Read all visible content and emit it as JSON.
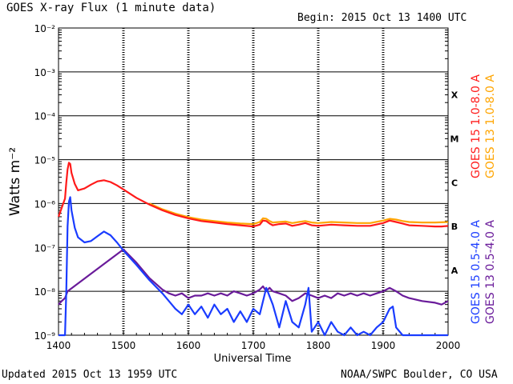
{
  "header": {
    "title": "GOES X-ray Flux (1 minute data)",
    "begin": "Begin: 2015 Oct 13 1400 UTC"
  },
  "footer": {
    "updated": "Updated 2015 Oct 13 1959 UTC",
    "credit": "NOAA/SWPC Boulder, CO USA"
  },
  "colors": {
    "goes15_long": "#ff1a1a",
    "goes13_long": "#ffa500",
    "goes15_short": "#1a3cff",
    "goes13_short": "#6a1b9a"
  },
  "chart_data": {
    "type": "line",
    "title": "GOES X-ray Flux (1 minute data)",
    "xlabel": "Universal Time",
    "ylabel": "Watts m⁻²",
    "xlim": [
      1400,
      2000
    ],
    "ylim": [
      1e-09,
      0.01
    ],
    "yscale": "log",
    "x_ticks": [
      "1400",
      "1500",
      "1600",
      "1700",
      "1800",
      "1900",
      "2000"
    ],
    "y_ticks": [
      "10⁻⁹",
      "10⁻⁸",
      "10⁻⁷",
      "10⁻⁶",
      "10⁻⁵",
      "10⁻⁴",
      "10⁻³",
      "10⁻²"
    ],
    "y_tick_exponents": [
      -9,
      -8,
      -7,
      -6,
      -5,
      -4,
      -3,
      -2
    ],
    "flare_classes": [
      {
        "label": "X",
        "value": 0.0003
      },
      {
        "label": "M",
        "value": 3e-05
      },
      {
        "label": "C",
        "value": 3e-06
      },
      {
        "label": "B",
        "value": 3e-07
      },
      {
        "label": "A",
        "value": 3e-08
      }
    ],
    "grid": true,
    "series": [
      {
        "name": "GOES 15 1.0-8.0 A",
        "color": "#ff1a1a",
        "x": [
          1400,
          1405,
          1410,
          1412,
          1414,
          1416,
          1418,
          1420,
          1425,
          1430,
          1440,
          1450,
          1460,
          1470,
          1480,
          1490,
          1500,
          1520,
          1540,
          1560,
          1580,
          1600,
          1620,
          1640,
          1660,
          1680,
          1700,
          1710,
          1715,
          1720,
          1725,
          1730,
          1740,
          1750,
          1760,
          1770,
          1780,
          1790,
          1800,
          1820,
          1840,
          1860,
          1880,
          1900,
          1910,
          1920,
          1930,
          1940,
          1960,
          1980,
          1990,
          2000
        ],
        "y": [
          5e-07,
          8e-07,
          1.3e-06,
          3e-06,
          6e-06,
          8.5e-06,
          8e-06,
          5e-06,
          2.8e-06,
          2e-06,
          2.2e-06,
          2.7e-06,
          3.2e-06,
          3.4e-06,
          3.1e-06,
          2.6e-06,
          2.1e-06,
          1.35e-06,
          9.5e-07,
          7e-07,
          5.5e-07,
          4.6e-07,
          4e-07,
          3.7e-07,
          3.4e-07,
          3.2e-07,
          3e-07,
          3.3e-07,
          4.1e-07,
          4e-07,
          3.5e-07,
          3.2e-07,
          3.4e-07,
          3.5e-07,
          3.1e-07,
          3.3e-07,
          3.6e-07,
          3.2e-07,
          3.1e-07,
          3.3e-07,
          3.2e-07,
          3.1e-07,
          3.1e-07,
          3.6e-07,
          4.1e-07,
          3.8e-07,
          3.5e-07,
          3.2e-07,
          3.1e-07,
          3e-07,
          3e-07,
          3.1e-07
        ]
      },
      {
        "name": "GOES 13 1.0-8.0 A",
        "color": "#ffa500",
        "x": [
          1540,
          1560,
          1580,
          1600,
          1620,
          1640,
          1660,
          1680,
          1700,
          1710,
          1715,
          1720,
          1725,
          1730,
          1740,
          1750,
          1760,
          1770,
          1780,
          1790,
          1800,
          1820,
          1840,
          1860,
          1880,
          1900,
          1910,
          1920,
          1930,
          1940,
          1960,
          1980,
          2000
        ],
        "y": [
          1e-06,
          7.4e-07,
          5.9e-07,
          4.9e-07,
          4.3e-07,
          4e-07,
          3.7e-07,
          3.5e-07,
          3.4e-07,
          3.8e-07,
          4.6e-07,
          4.5e-07,
          4e-07,
          3.7e-07,
          3.8e-07,
          3.9e-07,
          3.6e-07,
          3.8e-07,
          4e-07,
          3.7e-07,
          3.6e-07,
          3.8e-07,
          3.7e-07,
          3.6e-07,
          3.6e-07,
          4.1e-07,
          4.5e-07,
          4.3e-07,
          4e-07,
          3.8e-07,
          3.7e-07,
          3.7e-07,
          3.8e-07
        ]
      },
      {
        "name": "GOES 15 0.5-4.0 A",
        "color": "#1a3cff",
        "x": [
          1400,
          1405,
          1408,
          1410,
          1412,
          1414,
          1416,
          1418,
          1420,
          1425,
          1430,
          1440,
          1450,
          1460,
          1470,
          1480,
          1490,
          1500,
          1520,
          1540,
          1560,
          1570,
          1580,
          1590,
          1600,
          1610,
          1620,
          1630,
          1640,
          1650,
          1660,
          1670,
          1680,
          1690,
          1700,
          1710,
          1720,
          1730,
          1740,
          1750,
          1760,
          1770,
          1780,
          1785,
          1790,
          1800,
          1810,
          1820,
          1830,
          1840,
          1850,
          1860,
          1870,
          1880,
          1890,
          1900,
          1910,
          1915,
          1920,
          1930,
          1940,
          1950,
          1960,
          1980,
          2000
        ],
        "y": [
          1e-09,
          1e-09,
          1e-09,
          1e-09,
          1e-08,
          3e-07,
          1.1e-06,
          1.4e-06,
          7e-07,
          2.8e-07,
          1.7e-07,
          1.3e-07,
          1.4e-07,
          1.8e-07,
          2.3e-07,
          1.9e-07,
          1.3e-07,
          8.5e-08,
          4e-08,
          1.8e-08,
          9e-09,
          6e-09,
          4e-09,
          3e-09,
          5e-09,
          3e-09,
          4.5e-09,
          2.5e-09,
          5e-09,
          3e-09,
          4e-09,
          2e-09,
          3.5e-09,
          2e-09,
          4e-09,
          3e-09,
          1.2e-08,
          5e-09,
          1.5e-09,
          6e-09,
          2e-09,
          1.5e-09,
          5e-09,
          1.2e-08,
          1.2e-09,
          2e-09,
          1e-09,
          2e-09,
          1.2e-09,
          1e-09,
          1.5e-09,
          1e-09,
          1.2e-09,
          1e-09,
          1.5e-09,
          2e-09,
          4e-09,
          4.5e-09,
          1.5e-09,
          1e-09,
          1e-09,
          1e-09,
          1e-09,
          1e-09,
          1e-09
        ]
      },
      {
        "name": "GOES 13 0.5-4.0 A",
        "color": "#6a1b9a",
        "x": [
          1400,
          1405,
          1410,
          1414,
          1500,
          1520,
          1540,
          1560,
          1570,
          1580,
          1590,
          1600,
          1610,
          1620,
          1630,
          1640,
          1650,
          1660,
          1670,
          1680,
          1690,
          1700,
          1710,
          1715,
          1720,
          1725,
          1730,
          1740,
          1750,
          1760,
          1770,
          1780,
          1790,
          1800,
          1810,
          1820,
          1830,
          1840,
          1850,
          1860,
          1870,
          1880,
          1890,
          1900,
          1910,
          1920,
          1930,
          1940,
          1960,
          1980,
          1990,
          2000
        ],
        "y": [
          5e-09,
          6e-09,
          7e-09,
          1e-08,
          9e-08,
          4.5e-08,
          2e-08,
          1.1e-08,
          9e-09,
          8e-09,
          9e-09,
          7e-09,
          8e-09,
          8e-09,
          9e-09,
          8e-09,
          9e-09,
          8e-09,
          1e-08,
          9e-09,
          8e-09,
          9e-09,
          1.1e-08,
          1.3e-08,
          1e-08,
          1.2e-08,
          1e-08,
          9e-09,
          8e-09,
          6e-09,
          7e-09,
          9e-09,
          8e-09,
          7e-09,
          8e-09,
          7e-09,
          9e-09,
          8e-09,
          9e-09,
          8e-09,
          9e-09,
          8e-09,
          9e-09,
          1e-08,
          1.2e-08,
          1e-08,
          8e-09,
          7e-09,
          6e-09,
          5.5e-09,
          5e-09,
          6e-09
        ]
      }
    ]
  }
}
